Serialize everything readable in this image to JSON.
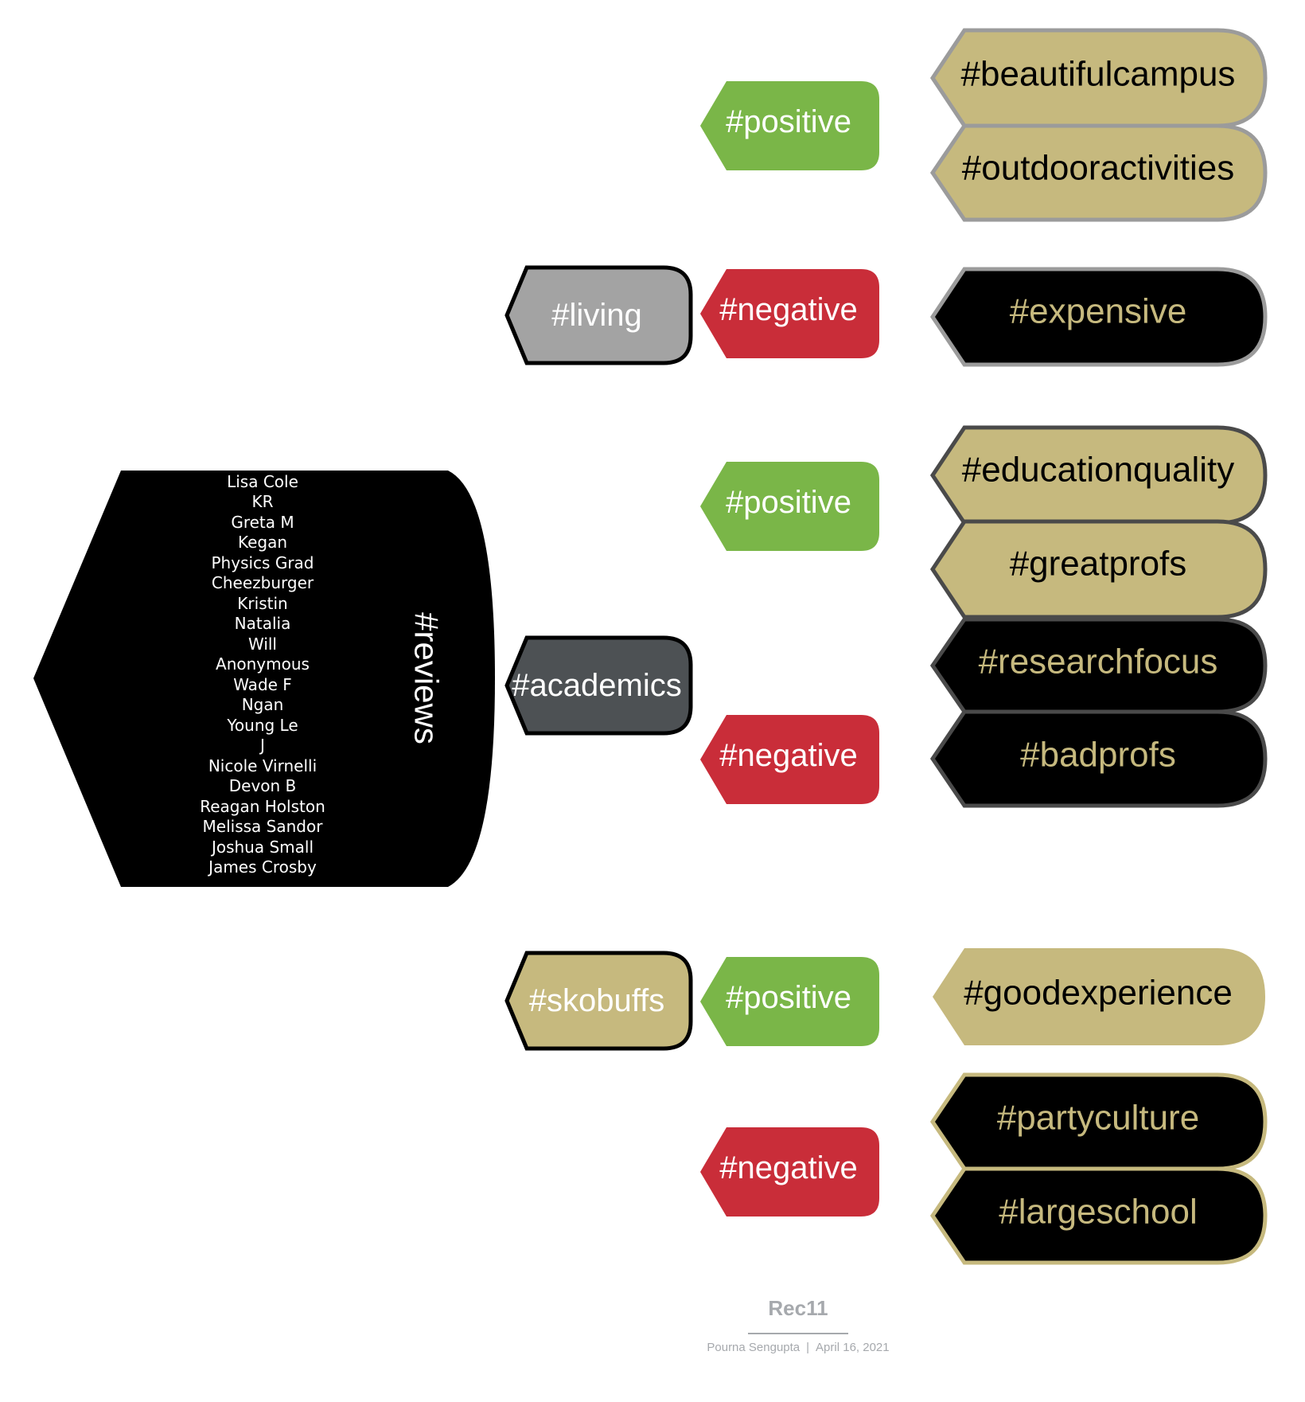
{
  "root": {
    "label": "#reviews",
    "reviewers": [
      "Lisa Cole",
      "KR",
      "Greta M",
      "Kegan",
      "Physics Grad",
      "Cheezburger",
      "Kristin",
      "Natalia",
      "Will",
      "Anonymous",
      "Wade F",
      "Ngan",
      "Young Le",
      "J",
      "Nicole Virnelli",
      "Devon B",
      "Reagan Holston",
      "Melissa Sandor",
      "Joshua Small",
      "James Crosby"
    ]
  },
  "categories": [
    {
      "label": "#living",
      "sentiments": [
        {
          "label": "#positive",
          "tags": [
            "#beautifulcampus",
            "#outdooractivities"
          ]
        },
        {
          "label": "#negative",
          "tags": [
            "#expensive"
          ]
        }
      ]
    },
    {
      "label": "#academics",
      "sentiments": [
        {
          "label": "#positive",
          "tags": [
            "#educationquality",
            "#greatprofs"
          ]
        },
        {
          "label": "#negative",
          "tags": [
            "#researchfocus",
            "#badprofs"
          ]
        }
      ]
    },
    {
      "label": "#skobuffs",
      "sentiments": [
        {
          "label": "#positive",
          "tags": [
            "#goodexperience"
          ]
        },
        {
          "label": "#negative",
          "tags": [
            "#partyculture",
            "#largeschool"
          ]
        }
      ]
    }
  ],
  "footer": {
    "title": "Rec11",
    "author": "Pourna Sengupta",
    "separator": "|",
    "date": "April 16, 2021"
  },
  "colors": {
    "gold": "#c6b97e",
    "black": "#000000",
    "positive": "#7ab648",
    "negative": "#c92d39",
    "living_fill": "#a3a3a3",
    "academics_fill": "#4d5154",
    "gray_border": "#9b9b9b",
    "dark_border": "#4a4a4a"
  }
}
